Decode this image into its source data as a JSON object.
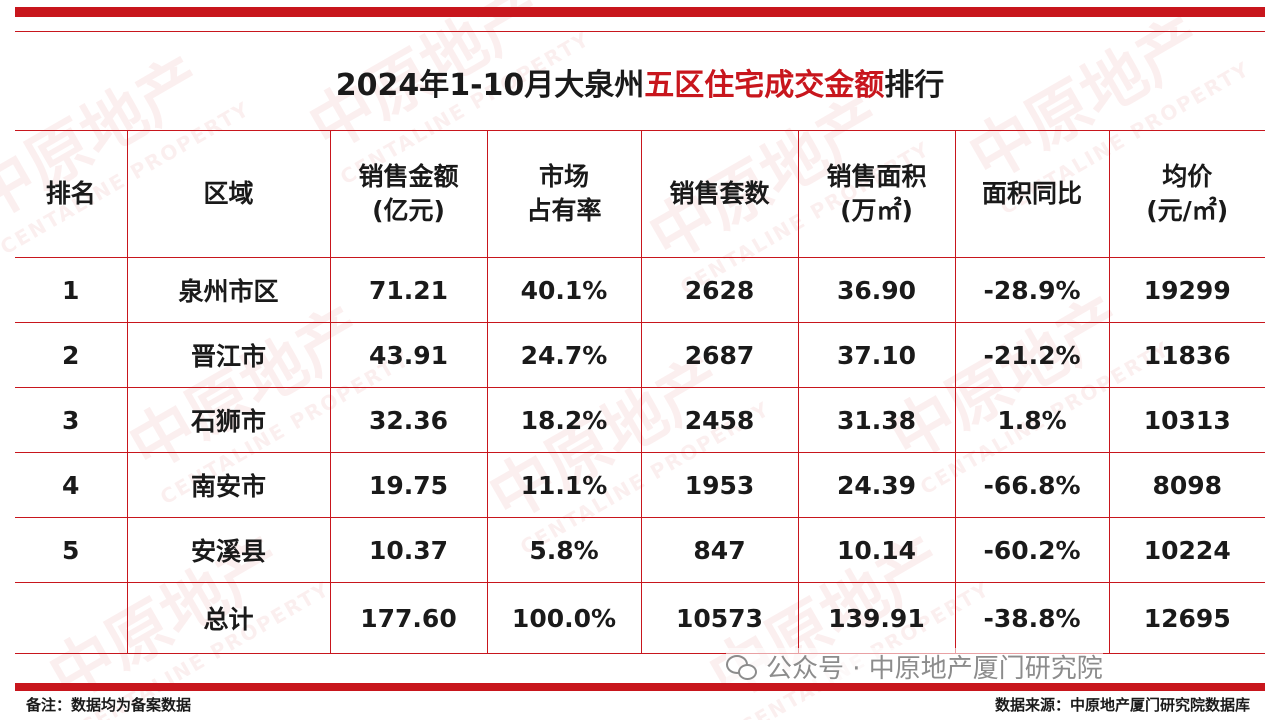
{
  "title": {
    "prefix": "2024年1-10月大泉州",
    "highlight": "五区住宅成交金额",
    "suffix": "排行"
  },
  "table": {
    "headers": [
      {
        "line1": "排名",
        "line2": ""
      },
      {
        "line1": "区域",
        "line2": ""
      },
      {
        "line1": "销售金额",
        "line2": "(亿元)"
      },
      {
        "line1": "市场",
        "line2": "占有率"
      },
      {
        "line1": "销售套数",
        "line2": ""
      },
      {
        "line1": "销售面积",
        "line2": "(万㎡)"
      },
      {
        "line1": "面积同比",
        "line2": ""
      },
      {
        "line1": "均价",
        "line2": "(元/㎡)"
      }
    ],
    "rows": [
      [
        "1",
        "泉州市区",
        "71.21",
        "40.1%",
        "2628",
        "36.90",
        "-28.9%",
        "19299"
      ],
      [
        "2",
        "晋江市",
        "43.91",
        "24.7%",
        "2687",
        "37.10",
        "-21.2%",
        "11836"
      ],
      [
        "3",
        "石狮市",
        "32.36",
        "18.2%",
        "2458",
        "31.38",
        "1.8%",
        "10313"
      ],
      [
        "4",
        "南安市",
        "19.75",
        "11.1%",
        "1953",
        "24.39",
        "-66.8%",
        "8098"
      ],
      [
        "5",
        "安溪县",
        "10.37",
        "5.8%",
        "847",
        "10.14",
        "-60.2%",
        "10224"
      ],
      [
        "",
        "总计",
        "177.60",
        "100.0%",
        "10573",
        "139.91",
        "-38.8%",
        "12695"
      ]
    ]
  },
  "footer": {
    "note": "备注：数据均为备案数据",
    "source": "数据来源：中原地产厦门研究院数据库",
    "wechat": "公众号 · 中原地产厦门研究院"
  },
  "watermark": {
    "brand_cn": "中原地产",
    "brand_en": "CENTALINE PROPERTY"
  },
  "colors": {
    "accent": "#c8161d"
  }
}
